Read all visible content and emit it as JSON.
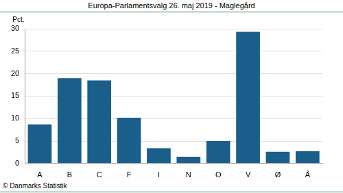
{
  "chart_data": {
    "type": "bar",
    "title": "Europa-Parlamentsvalg 26. maj 2019 - Maglegård",
    "y_label": "Pct.",
    "source": "© Danmarks Statistik",
    "categories": [
      "A",
      "B",
      "C",
      "F",
      "I",
      "N",
      "O",
      "V",
      "Ø",
      "Å"
    ],
    "values": [
      8.7,
      19.0,
      18.5,
      10.2,
      3.4,
      1.5,
      5.0,
      29.3,
      2.6,
      2.7
    ],
    "color": "#1a5e8c",
    "ylim": [
      0,
      30
    ],
    "yticks": [
      0,
      5,
      10,
      15,
      20,
      25,
      30
    ],
    "grid": true
  }
}
